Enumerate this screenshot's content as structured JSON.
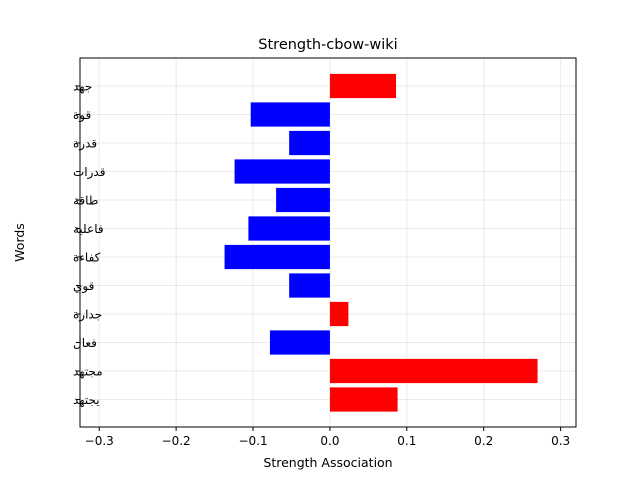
{
  "chart_data": {
    "type": "bar",
    "orientation": "horizontal",
    "title": "Strength-cbow-wiki",
    "xlabel": "Strength Association",
    "ylabel": "Words",
    "xlim": [
      -0.325,
      0.32
    ],
    "xticks": [
      -0.3,
      -0.2,
      -0.1,
      0.0,
      0.1,
      0.2,
      0.3
    ],
    "xtick_labels": [
      "−0.3",
      "−0.2",
      "−0.1",
      "0.0",
      "0.1",
      "0.2",
      "0.3"
    ],
    "grid": true,
    "positive_color": "#ff0000",
    "negative_color": "#0000ff",
    "categories": [
      "جهد",
      "قوة",
      "قدرة",
      "قدرات",
      "طاقة",
      "فاعلية",
      "كفاءة",
      "قوي",
      "جدارة",
      "فعال",
      "مجتهد",
      "يجتهد"
    ],
    "values": [
      0.086,
      -0.103,
      -0.053,
      -0.124,
      -0.07,
      -0.106,
      -0.137,
      -0.053,
      0.024,
      -0.078,
      0.27,
      0.088
    ]
  }
}
